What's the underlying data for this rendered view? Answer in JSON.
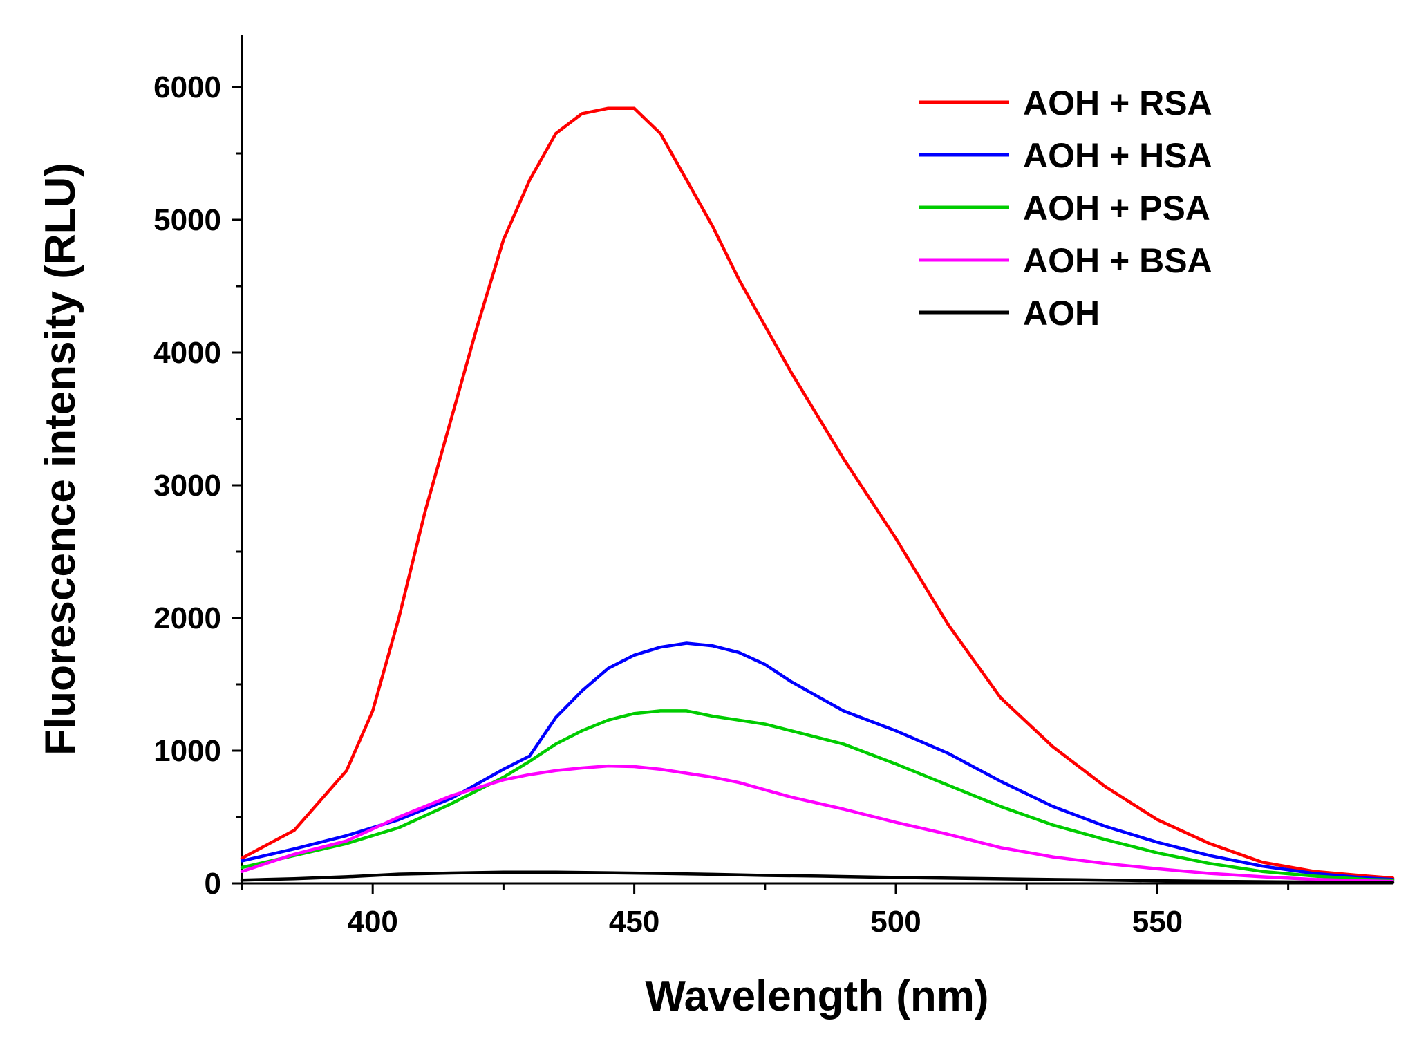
{
  "chart_data": {
    "type": "line",
    "title": "",
    "xlabel": "Wavelength (nm)",
    "ylabel": "Fluorescence intensity (RLU)",
    "xlim": [
      375,
      595
    ],
    "ylim": [
      0,
      6400
    ],
    "xticks": [
      400,
      450,
      500,
      550
    ],
    "yticks": [
      0,
      1000,
      2000,
      3000,
      4000,
      5000,
      6000
    ],
    "grid": false,
    "legend_position": "top-right",
    "series": [
      {
        "name": "AOH + RSA",
        "color": "#ff0000",
        "x": [
          375,
          385,
          395,
          400,
          405,
          410,
          420,
          425,
          430,
          435,
          440,
          445,
          450,
          455,
          460,
          465,
          470,
          480,
          490,
          500,
          510,
          520,
          530,
          540,
          550,
          560,
          570,
          580,
          590,
          595
        ],
        "y": [
          190,
          400,
          850,
          1300,
          2000,
          2800,
          4200,
          4850,
          5300,
          5650,
          5800,
          5840,
          5840,
          5650,
          5300,
          4950,
          4550,
          3850,
          3200,
          2600,
          1950,
          1400,
          1030,
          730,
          480,
          300,
          160,
          90,
          55,
          40
        ]
      },
      {
        "name": "AOH + HSA",
        "color": "#0000ff",
        "x": [
          375,
          385,
          395,
          405,
          415,
          425,
          430,
          435,
          440,
          445,
          450,
          455,
          460,
          465,
          470,
          475,
          480,
          490,
          500,
          510,
          520,
          530,
          540,
          550,
          560,
          570,
          580,
          590,
          595
        ],
        "y": [
          170,
          260,
          360,
          480,
          640,
          860,
          960,
          1250,
          1450,
          1620,
          1720,
          1780,
          1810,
          1790,
          1740,
          1650,
          1520,
          1300,
          1150,
          980,
          770,
          580,
          430,
          310,
          210,
          130,
          75,
          40,
          30
        ]
      },
      {
        "name": "AOH + PSA",
        "color": "#00cc00",
        "x": [
          375,
          385,
          395,
          405,
          415,
          425,
          430,
          435,
          440,
          445,
          450,
          455,
          460,
          465,
          470,
          475,
          480,
          490,
          500,
          510,
          520,
          530,
          540,
          550,
          560,
          570,
          580,
          590,
          595
        ],
        "y": [
          120,
          210,
          300,
          420,
          600,
          800,
          920,
          1050,
          1150,
          1230,
          1280,
          1300,
          1300,
          1260,
          1230,
          1200,
          1150,
          1050,
          900,
          740,
          580,
          440,
          330,
          230,
          150,
          90,
          55,
          30,
          25
        ]
      },
      {
        "name": "AOH + BSA",
        "color": "#ff00ff",
        "x": [
          375,
          385,
          395,
          405,
          415,
          425,
          430,
          435,
          440,
          445,
          450,
          455,
          460,
          465,
          470,
          480,
          490,
          500,
          510,
          520,
          530,
          540,
          550,
          560,
          570,
          580,
          590,
          595
        ],
        "y": [
          90,
          220,
          320,
          500,
          660,
          780,
          820,
          850,
          870,
          885,
          880,
          860,
          830,
          800,
          760,
          650,
          560,
          460,
          370,
          270,
          200,
          150,
          110,
          75,
          50,
          30,
          20,
          15
        ]
      },
      {
        "name": "AOH",
        "color": "#000000",
        "x": [
          375,
          385,
          395,
          405,
          415,
          425,
          435,
          445,
          455,
          465,
          475,
          485,
          495,
          505,
          515,
          525,
          535,
          545,
          555,
          565,
          575,
          585,
          595
        ],
        "y": [
          25,
          35,
          50,
          70,
          78,
          85,
          85,
          80,
          75,
          68,
          60,
          55,
          48,
          42,
          37,
          32,
          27,
          22,
          18,
          14,
          11,
          8,
          6
        ]
      }
    ]
  }
}
